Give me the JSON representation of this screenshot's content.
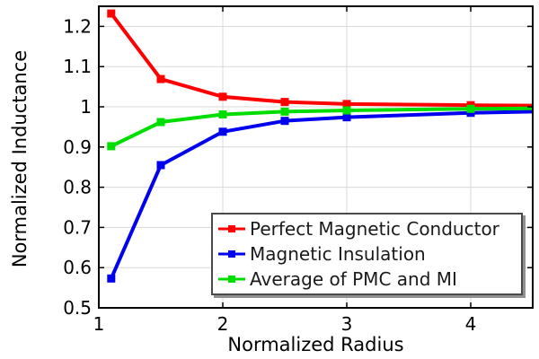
{
  "chart_data": {
    "type": "line",
    "title": "",
    "xlabel": "Normalized Radius",
    "ylabel": "Normalized Inductance",
    "xlim": [
      1,
      4.5
    ],
    "ylim": [
      0.5,
      1.25
    ],
    "grid": true,
    "grid_color": "#d8d8d8",
    "axis_color": "#000000",
    "legend_position": "inside-bottom-right",
    "x": [
      1.1,
      1.5,
      2,
      2.5,
      3,
      4,
      4.5
    ],
    "marker_x": [
      1.1,
      1.5,
      2,
      2.5,
      3,
      4
    ],
    "xticks": {
      "values": [
        1,
        2,
        3,
        4
      ],
      "labels": [
        "1",
        "2",
        "3",
        "4"
      ]
    },
    "yticks": {
      "values": [
        0.5,
        0.6,
        0.7,
        0.8,
        0.9,
        1.0,
        1.1,
        1.2
      ],
      "labels": [
        "0.5",
        "0.6",
        "0.7",
        "0.8",
        "0.9",
        "1",
        "1.1",
        "1.2"
      ]
    },
    "series": [
      {
        "name": "Perfect Magnetic Conductor",
        "color": "#ff0000",
        "marker": "square",
        "values": [
          1.232,
          1.069,
          1.025,
          1.012,
          1.007,
          1.004,
          1.003
        ]
      },
      {
        "name": "Magnetic Insulation",
        "color": "#0000ee",
        "marker": "square",
        "values": [
          0.573,
          0.855,
          0.938,
          0.965,
          0.974,
          0.985,
          0.988
        ]
      },
      {
        "name": "Average of PMC and MI",
        "color": "#00dd00",
        "marker": "square",
        "values": [
          0.902,
          0.962,
          0.981,
          0.988,
          0.991,
          0.995,
          0.996
        ]
      }
    ]
  }
}
